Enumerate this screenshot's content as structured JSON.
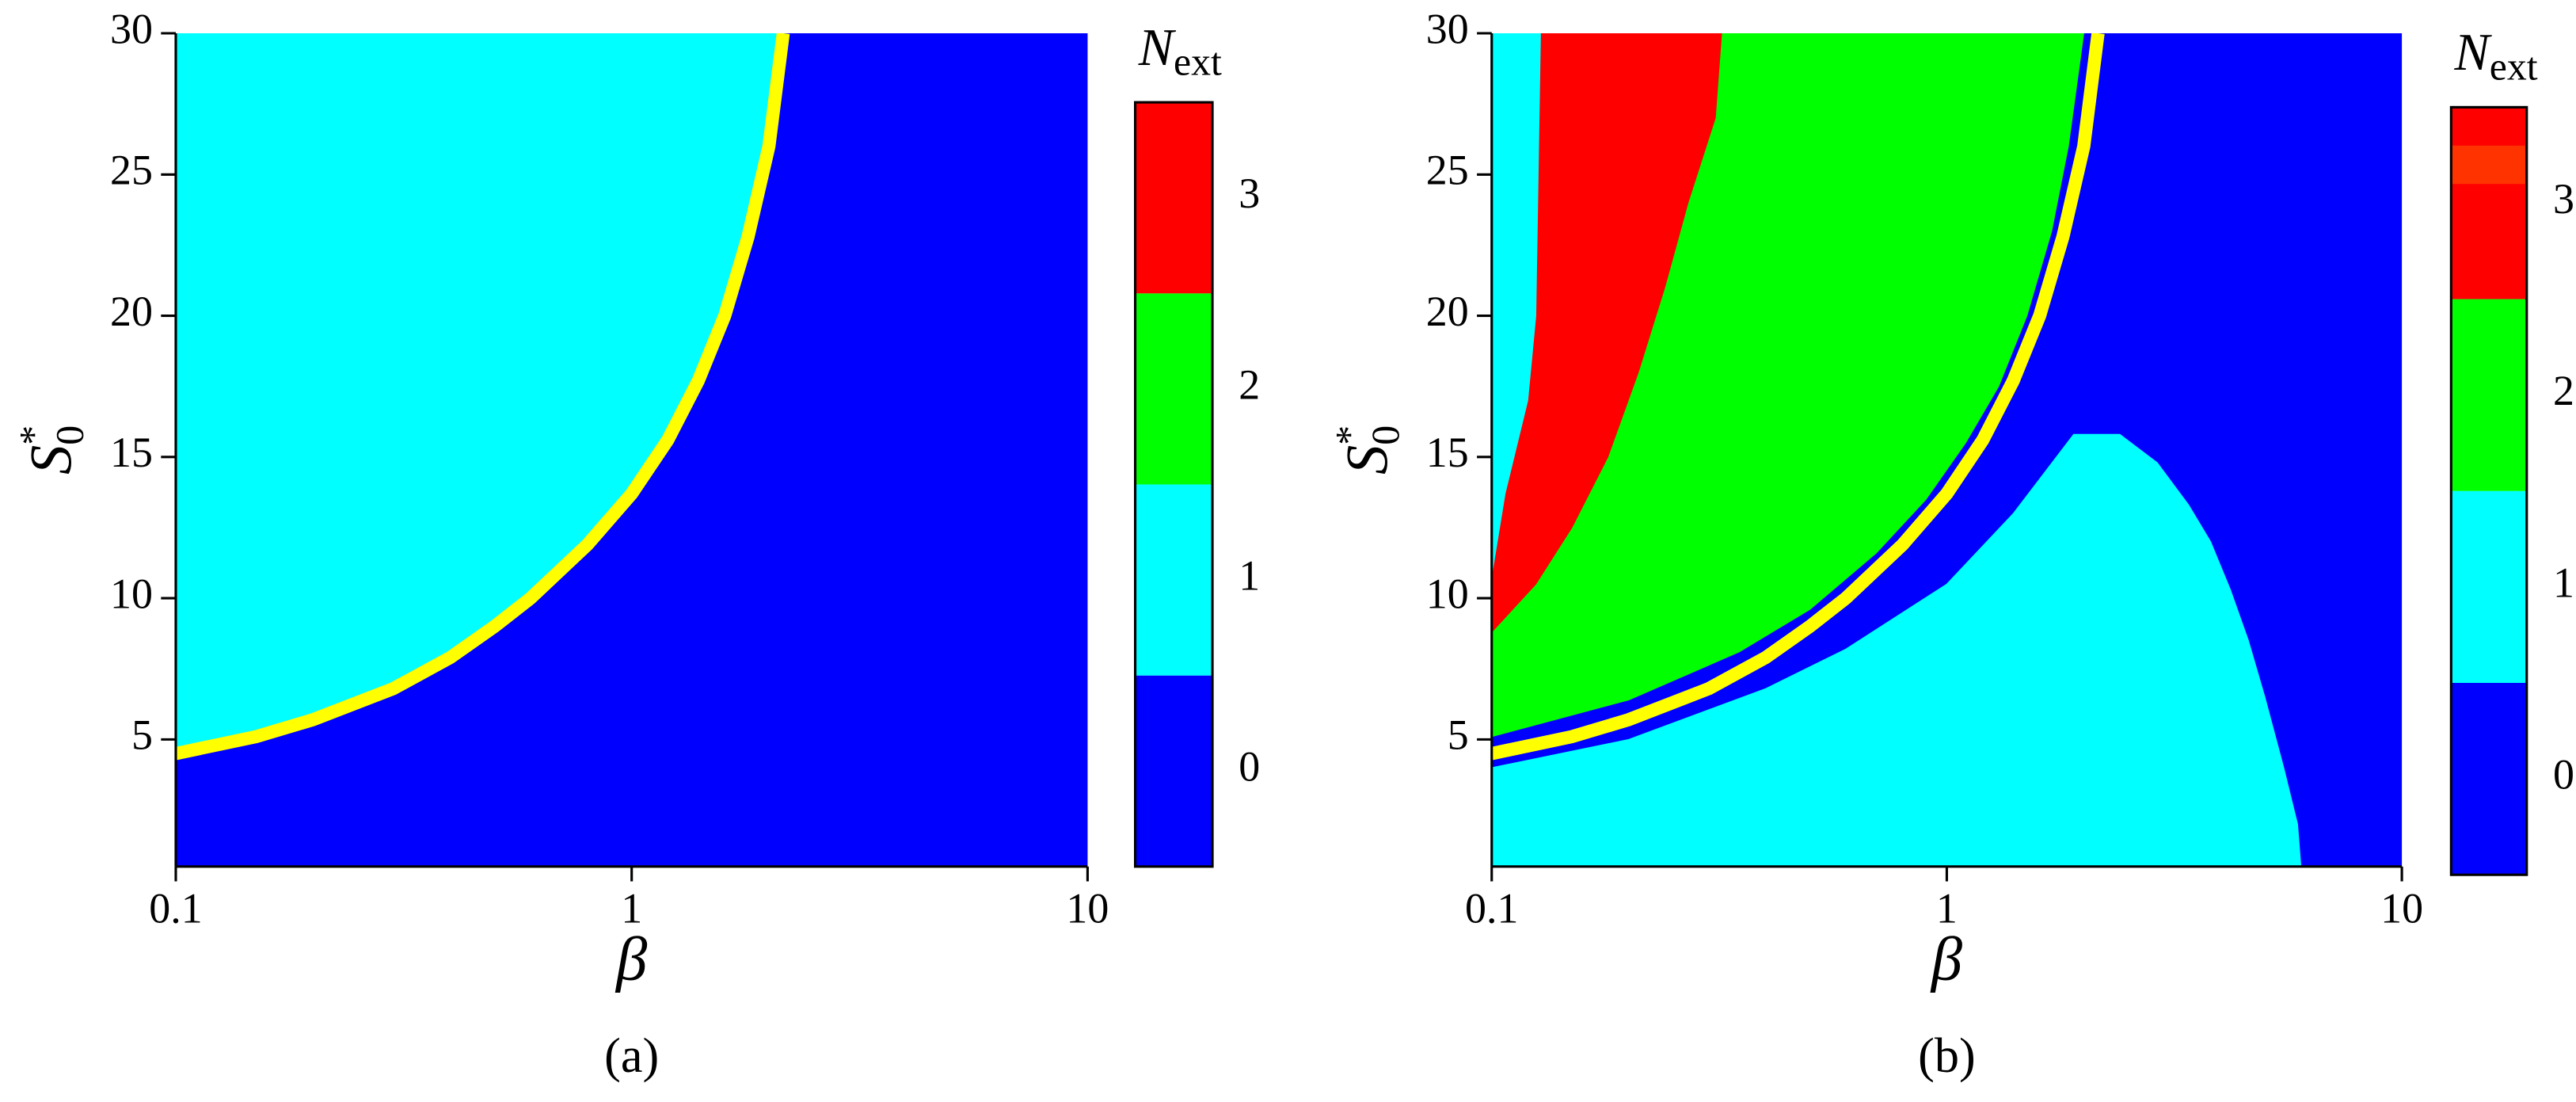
{
  "chart_data": [
    {
      "type": "heatmap",
      "panel_label": "(a)",
      "xlabel": "β",
      "ylabel": "S",
      "ylabel_sup": "*",
      "ylabel_sub": "0",
      "xscale": "log",
      "xlim": [
        0.1,
        10
      ],
      "xticks": [
        0.1,
        1,
        10
      ],
      "ylim": [
        0.5,
        30
      ],
      "yticks": [
        5,
        10,
        15,
        20,
        25,
        30
      ],
      "colorbar": {
        "title": "N",
        "title_sub": "ext",
        "lim": [
          -0.5,
          3.5
        ],
        "ticks": [
          0,
          1,
          2,
          3
        ],
        "bands": [
          {
            "from": -0.5,
            "to": 0.5,
            "color": "#0000ff"
          },
          {
            "from": 0.5,
            "to": 1.5,
            "color": "#00ffff"
          },
          {
            "from": 1.5,
            "to": 2.5,
            "color": "#00ff00"
          },
          {
            "from": 2.5,
            "to": 3.5,
            "color": "#ff0000"
          }
        ]
      },
      "regions": [
        {
          "level": 0,
          "x": [
            0.1,
            10,
            10,
            0.1
          ],
          "y": [
            0.5,
            0.5,
            30,
            30
          ]
        },
        {
          "level": 1,
          "x": [
            0.1,
            0.1,
            0.15,
            0.2,
            0.3,
            0.4,
            0.5,
            0.6,
            0.8,
            1,
            1.2,
            1.4,
            1.6,
            1.8,
            2,
            2.15
          ],
          "y": [
            30,
            4.5,
            5.1,
            5.7,
            6.8,
            7.9,
            9.0,
            10,
            11.9,
            13.7,
            15.6,
            17.7,
            20,
            22.8,
            26,
            30
          ]
        }
      ],
      "curve": {
        "color": "#ffff00",
        "x": [
          0.1,
          0.15,
          0.2,
          0.3,
          0.4,
          0.5,
          0.6,
          0.8,
          1,
          1.2,
          1.4,
          1.6,
          1.8,
          2,
          2.15
        ],
        "y": [
          4.5,
          5.1,
          5.7,
          6.8,
          7.9,
          9.0,
          10,
          11.9,
          13.7,
          15.6,
          17.7,
          20,
          22.8,
          26,
          30
        ]
      }
    },
    {
      "type": "heatmap",
      "panel_label": "(b)",
      "xlabel": "β",
      "ylabel": "S",
      "ylabel_sup": "*",
      "ylabel_sub": "0",
      "xscale": "log",
      "xlim": [
        0.1,
        10
      ],
      "xticks": [
        0.1,
        1,
        10
      ],
      "ylim": [
        0.5,
        30
      ],
      "yticks": [
        5,
        10,
        15,
        20,
        25,
        30
      ],
      "colorbar": {
        "title": "N",
        "title_sub": "ext",
        "lim": [
          -0.5,
          3.5
        ],
        "ticks": [
          0,
          1,
          2,
          3
        ],
        "bands": [
          {
            "from": -0.5,
            "to": 0.5,
            "color": "#0000ff"
          },
          {
            "from": 0.5,
            "to": 1.5,
            "color": "#00ffff"
          },
          {
            "from": 1.5,
            "to": 2.5,
            "color": "#00ff00"
          },
          {
            "from": 2.5,
            "to": 3.5,
            "color": "#ff0000"
          },
          {
            "from": 3.1,
            "to": 3.3,
            "color": "#ff3300"
          }
        ]
      },
      "regions": [
        {
          "level": 0,
          "x": [
            0.1,
            10,
            10,
            0.1
          ],
          "y": [
            0.5,
            0.5,
            30,
            30
          ]
        },
        {
          "level": 1,
          "x": [
            0.1,
            6.0,
            5.9,
            5.5,
            5.0,
            4.6,
            4.2,
            3.8,
            3.4,
            2.9,
            2.4,
            1.9,
            1.4,
            1,
            0.6,
            0.4,
            0.2,
            0.1
          ],
          "y": [
            0.5,
            0.5,
            2,
            4,
            6.5,
            8.5,
            10.3,
            12,
            13.3,
            14.8,
            15.8,
            15.8,
            13,
            10.5,
            8.2,
            6.8,
            5.0,
            4.0
          ]
        },
        {
          "level": 2,
          "x": [
            0.32,
            2.0,
            1.85,
            1.7,
            1.5,
            1.3,
            1.1,
            0.9,
            0.7,
            0.5,
            0.35,
            0.2,
            0.1,
            0.1,
            0.125,
            0.15,
            0.18,
            0.21,
            0.24,
            0.27,
            0.31
          ],
          "y": [
            30,
            30,
            26,
            23,
            20,
            17.5,
            15.5,
            13.5,
            11.6,
            9.6,
            8.1,
            6.4,
            5.1,
            8.8,
            10.5,
            12.5,
            15,
            18,
            21,
            24,
            27
          ]
        },
        {
          "level": 3,
          "x": [
            0.128,
            0.32,
            0.31,
            0.27,
            0.24,
            0.21,
            0.18,
            0.15,
            0.125,
            0.1,
            0.1,
            0.107,
            0.12,
            0.125
          ],
          "y": [
            30,
            30,
            27,
            24,
            21,
            18,
            15,
            12.5,
            10.5,
            8.8,
            10.8,
            13.7,
            17,
            20
          ]
        },
        {
          "level": 1,
          "x": [
            0.1,
            0.128,
            0.125,
            0.12,
            0.107,
            0.1
          ],
          "y": [
            30,
            30,
            20,
            17,
            13.7,
            10.8
          ]
        }
      ],
      "curve": {
        "color": "#ffff00",
        "x": [
          0.1,
          0.15,
          0.2,
          0.3,
          0.4,
          0.5,
          0.6,
          0.8,
          1,
          1.2,
          1.4,
          1.6,
          1.8,
          2,
          2.15
        ],
        "y": [
          4.5,
          5.1,
          5.7,
          6.8,
          7.9,
          9.0,
          10,
          11.9,
          13.7,
          15.6,
          17.7,
          20,
          22.8,
          26,
          30
        ]
      }
    }
  ]
}
